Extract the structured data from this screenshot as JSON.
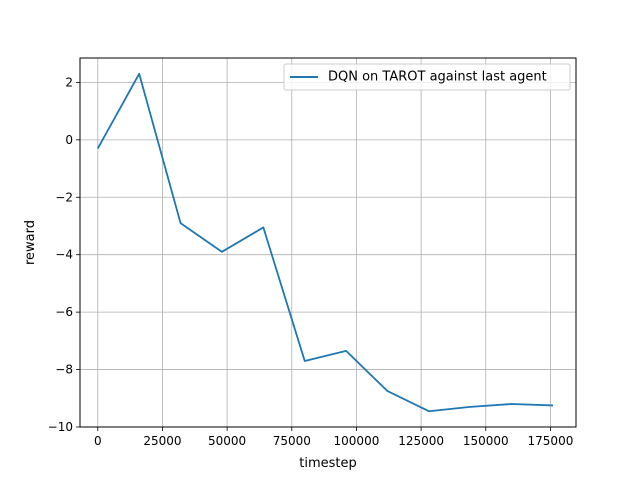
{
  "chart_data": {
    "type": "line",
    "title": "",
    "xlabel": "timestep",
    "ylabel": "reward",
    "xlim": [
      -6880,
      184880
    ],
    "ylim": [
      -10.0,
      2.85
    ],
    "xticks": [
      0,
      25000,
      50000,
      75000,
      100000,
      125000,
      150000,
      175000
    ],
    "xtick_labels": [
      "0",
      "25000",
      "50000",
      "75000",
      "100000",
      "125000",
      "150000",
      "175000"
    ],
    "yticks": [
      -10,
      -8,
      -6,
      -4,
      -2,
      0,
      2
    ],
    "ytick_labels": [
      "−10",
      "−8",
      "−6",
      "−4",
      "−2",
      "0",
      "2"
    ],
    "grid": true,
    "legend": "top-right",
    "series": [
      {
        "name": "DQN on TAROT against last agent",
        "color": "#1f77b4",
        "x": [
          0,
          16000,
          32000,
          48000,
          64000,
          80000,
          96000,
          112000,
          128000,
          144000,
          160000,
          176000
        ],
        "y": [
          -0.3,
          2.3,
          -2.9,
          -3.9,
          -3.05,
          -7.7,
          -7.35,
          -8.75,
          -9.45,
          -9.3,
          -9.2,
          -9.25
        ]
      }
    ]
  }
}
